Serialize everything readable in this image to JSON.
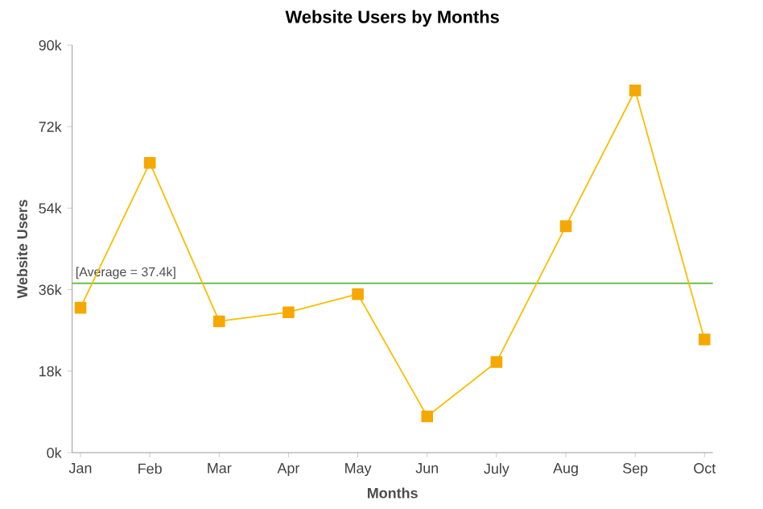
{
  "chart_data": {
    "type": "line",
    "title": "Website Users by Months",
    "xlabel": "Months",
    "ylabel": "Website Users",
    "categories": [
      "Jan",
      "Feb",
      "Mar",
      "Apr",
      "May",
      "Jun",
      "July",
      "Aug",
      "Sep",
      "Oct"
    ],
    "series": [
      {
        "color": "#f5a800",
        "values": [
          32,
          64,
          29,
          31,
          35,
          8,
          20,
          50,
          80,
          25
        ]
      }
    ],
    "ylim": [
      0,
      90
    ],
    "yticks": [
      {
        "value": 0,
        "label": "0k"
      },
      {
        "value": 18,
        "label": "18k"
      },
      {
        "value": 36,
        "label": "36k"
      },
      {
        "value": 54,
        "label": "54k"
      },
      {
        "value": 72,
        "label": "72k"
      },
      {
        "value": 90,
        "label": "90k"
      }
    ],
    "ref_lines": [
      {
        "axis": "y",
        "value": 37.4,
        "label": "[Average = 37.4k]",
        "color": "#6abf4b"
      }
    ],
    "marker": "square",
    "grid": false
  }
}
